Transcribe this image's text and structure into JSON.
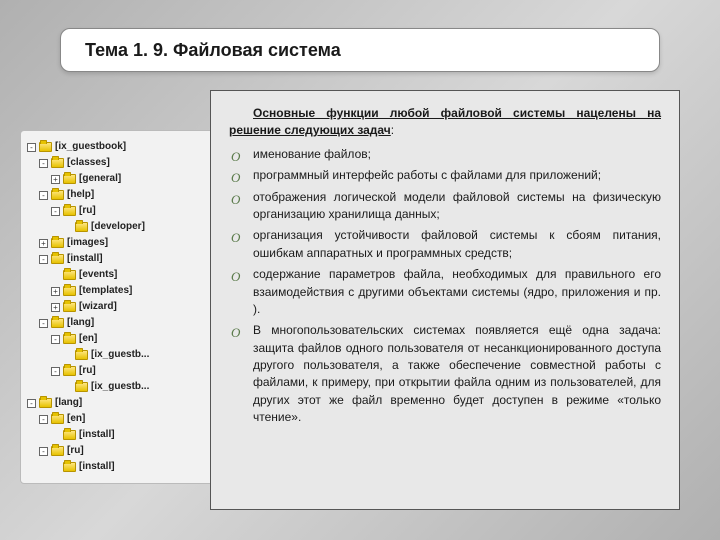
{
  "title": "Тема 1. 9. Файловая система",
  "intro_underlined": "Основные функции любой файловой системы нацелены на решение следующих задач",
  "intro_tail": ":",
  "bullets": [
    "именование файлов;",
    "программный интерфейс работы с файлами для приложений;",
    "отображения логической модели файловой системы на физическую организацию хранилища данных;",
    "организация устойчивости файловой системы к сбоям питания, ошибкам аппаратных и программных средств;",
    "содержание параметров файла, необходимых для правильного его взаимодействия с другими объектами системы (ядро, приложения и пр. ).",
    "В многопользовательских системах появляется ещё одна задача: защита файлов одного пользователя от несанкционированного доступа другого пользователя, а также обеспечение совместной работы с файлами, к примеру, при открытии файла одним из пользователей, для других этот же файл временно будет доступен в режиме «только чтение»."
  ],
  "tree": [
    {
      "indent": 0,
      "toggle": "-",
      "label": "[ix_guestbook]"
    },
    {
      "indent": 1,
      "toggle": "-",
      "label": "[classes]"
    },
    {
      "indent": 2,
      "toggle": "+",
      "label": "[general]"
    },
    {
      "indent": 1,
      "toggle": "-",
      "label": "[help]"
    },
    {
      "indent": 2,
      "toggle": "-",
      "label": "[ru]"
    },
    {
      "indent": 3,
      "toggle": "",
      "label": "[developer]"
    },
    {
      "indent": 1,
      "toggle": "+",
      "label": "[images]"
    },
    {
      "indent": 1,
      "toggle": "-",
      "label": "[install]"
    },
    {
      "indent": 2,
      "toggle": "",
      "label": "[events]"
    },
    {
      "indent": 2,
      "toggle": "+",
      "label": "[templates]"
    },
    {
      "indent": 2,
      "toggle": "+",
      "label": "[wizard]"
    },
    {
      "indent": 1,
      "toggle": "-",
      "label": "[lang]"
    },
    {
      "indent": 2,
      "toggle": "-",
      "label": "[en]"
    },
    {
      "indent": 3,
      "toggle": "",
      "label": "[ix_guestb..."
    },
    {
      "indent": 2,
      "toggle": "-",
      "label": "[ru]"
    },
    {
      "indent": 3,
      "toggle": "",
      "label": "[ix_guestb..."
    },
    {
      "indent": 0,
      "toggle": "-",
      "label": "[lang]"
    },
    {
      "indent": 1,
      "toggle": "-",
      "label": "[en]"
    },
    {
      "indent": 2,
      "toggle": "",
      "label": "[install]"
    },
    {
      "indent": 1,
      "toggle": "-",
      "label": "[ru]"
    },
    {
      "indent": 2,
      "toggle": "",
      "label": "[install]"
    }
  ],
  "colors": {
    "bullet_marker": "#5a7a4a",
    "panel_bg": "#e8e8e8",
    "tree_bg": "#f2f2f2"
  }
}
